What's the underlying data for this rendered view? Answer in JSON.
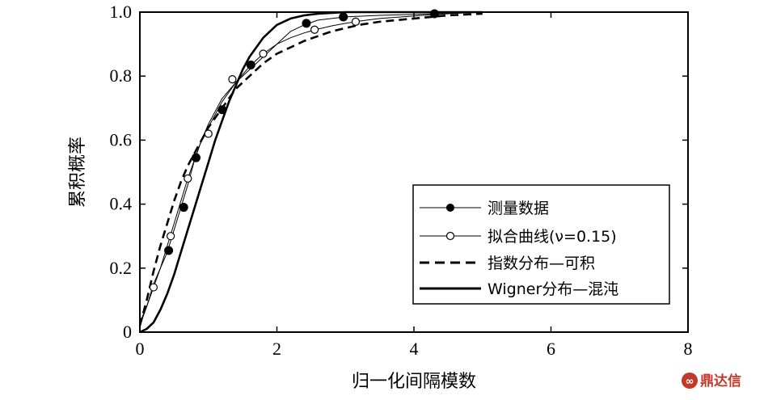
{
  "chart_data": {
    "type": "line",
    "title": "",
    "xlabel": "归一化间隔模数",
    "ylabel": "累积概率",
    "xlim": [
      0,
      8
    ],
    "ylim": [
      0,
      1.0
    ],
    "x_ticks": [
      "0",
      "2",
      "4",
      "6",
      "8"
    ],
    "y_ticks": [
      "0",
      "0.2",
      "0.4",
      "0.6",
      "0.8",
      "1.0"
    ],
    "grid": false,
    "legend_position": "bottom-right",
    "series": [
      {
        "name": "测量数据",
        "style": "thin-line-filled-markers",
        "x": [
          0,
          0.1,
          0.2,
          0.3,
          0.4,
          0.5,
          0.6,
          0.7,
          0.8,
          0.9,
          1.0,
          1.1,
          1.2,
          1.4,
          1.6,
          1.8,
          2.0,
          2.2,
          2.4,
          2.6,
          3.0,
          3.5,
          4.0,
          4.3,
          5.0
        ],
        "y": [
          0.02,
          0.08,
          0.15,
          0.2,
          0.25,
          0.32,
          0.39,
          0.46,
          0.54,
          0.6,
          0.65,
          0.69,
          0.73,
          0.78,
          0.82,
          0.86,
          0.9,
          0.94,
          0.96,
          0.975,
          0.985,
          0.99,
          0.993,
          0.995,
          1.0
        ],
        "marker_x": [
          0.42,
          0.64,
          0.82,
          1.2,
          1.62,
          2.43,
          2.97,
          4.3
        ],
        "marker_y": [
          0.255,
          0.39,
          0.545,
          0.695,
          0.835,
          0.965,
          0.985,
          0.995
        ]
      },
      {
        "name": "拟合曲线(ν=0.15)",
        "style": "thin-line-open-markers",
        "x": [
          0,
          0.1,
          0.2,
          0.3,
          0.4,
          0.5,
          0.6,
          0.7,
          0.8,
          0.9,
          1.0,
          1.1,
          1.2,
          1.4,
          1.6,
          1.8,
          2.0,
          2.2,
          2.4,
          2.6,
          2.8,
          3.0,
          3.2,
          3.5,
          4.0,
          4.5,
          5.0
        ],
        "y": [
          0.03,
          0.08,
          0.14,
          0.2,
          0.27,
          0.34,
          0.41,
          0.48,
          0.54,
          0.6,
          0.64,
          0.68,
          0.72,
          0.78,
          0.83,
          0.87,
          0.9,
          0.92,
          0.935,
          0.947,
          0.957,
          0.965,
          0.972,
          0.98,
          0.988,
          0.995,
          1.0
        ],
        "marker_x": [
          0.2,
          0.45,
          0.7,
          1.0,
          1.35,
          1.8,
          2.55,
          3.15
        ],
        "marker_y": [
          0.14,
          0.3,
          0.48,
          0.62,
          0.79,
          0.87,
          0.945,
          0.97
        ]
      },
      {
        "name": "指数分布—可积",
        "style": "dashed",
        "x": [
          0,
          0.1,
          0.2,
          0.3,
          0.4,
          0.5,
          0.6,
          0.7,
          0.8,
          0.9,
          1.0,
          1.2,
          1.4,
          1.6,
          1.8,
          2.0,
          2.2,
          2.4,
          2.6,
          2.8,
          3.0,
          3.2,
          3.5,
          4.0,
          4.5,
          5.0
        ],
        "y": [
          0.02,
          0.1,
          0.19,
          0.27,
          0.34,
          0.41,
          0.47,
          0.52,
          0.56,
          0.6,
          0.64,
          0.7,
          0.76,
          0.8,
          0.84,
          0.87,
          0.89,
          0.91,
          0.925,
          0.94,
          0.95,
          0.96,
          0.97,
          0.98,
          0.99,
          0.995
        ]
      },
      {
        "name": "Wigner分布—混沌",
        "style": "thick-solid",
        "x": [
          0,
          0.1,
          0.2,
          0.3,
          0.4,
          0.5,
          0.6,
          0.7,
          0.8,
          0.9,
          1.0,
          1.1,
          1.2,
          1.3,
          1.4,
          1.5,
          1.6,
          1.8,
          2.0,
          2.2,
          2.4,
          2.6,
          3.0,
          3.5,
          4.0,
          5.0
        ],
        "y": [
          0,
          0.01,
          0.03,
          0.07,
          0.12,
          0.18,
          0.25,
          0.32,
          0.39,
          0.46,
          0.53,
          0.6,
          0.66,
          0.72,
          0.77,
          0.82,
          0.86,
          0.92,
          0.96,
          0.98,
          0.99,
          0.995,
          1.0,
          1.0,
          1.0,
          1.0
        ]
      }
    ]
  },
  "watermark": {
    "text": "鼎达信",
    "color": "#c0392b"
  }
}
